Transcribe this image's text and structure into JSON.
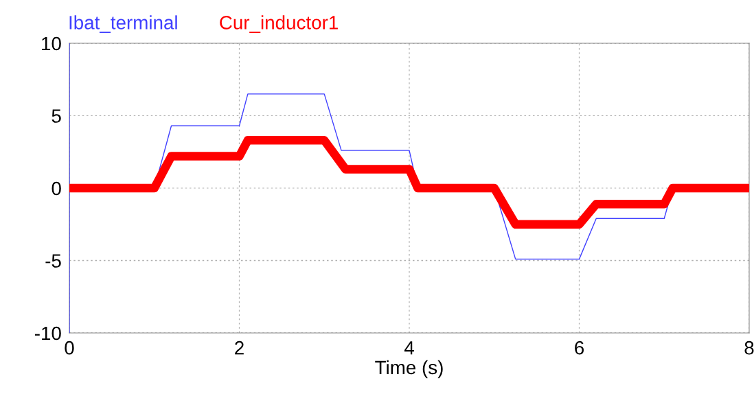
{
  "chart_data": {
    "type": "line",
    "xlabel": "Time (s)",
    "xlim": [
      0,
      8
    ],
    "xticks": [
      0,
      2,
      4,
      6,
      8
    ],
    "ylim": [
      -10,
      10
    ],
    "yticks": [
      -10,
      -5,
      0,
      5,
      10
    ],
    "grid": true,
    "legend": "top left",
    "line_style": "solid",
    "marker": "none",
    "series": [
      {
        "name": "Ibat_terminal",
        "color": "#4040ff",
        "x": [
          0,
          0,
          0,
          1,
          1.2,
          2,
          2.1,
          3,
          3.2,
          4,
          4.1,
          5,
          5.25,
          6,
          6.2,
          7,
          7.1,
          8
        ],
        "values": [
          10,
          -10,
          0,
          0,
          4.3,
          4.3,
          6.5,
          6.5,
          2.6,
          2.6,
          0,
          0,
          -4.9,
          -4.9,
          -2.1,
          -2.1,
          0,
          0
        ]
      },
      {
        "name": "Cur_inductor1",
        "color": "#ff0000",
        "x": [
          0,
          1,
          1.2,
          2,
          2.1,
          3,
          3.25,
          4,
          4.1,
          5,
          5.25,
          6,
          6.2,
          7,
          7.1,
          8
        ],
        "values": [
          0,
          0,
          2.2,
          2.2,
          3.3,
          3.3,
          1.3,
          1.3,
          0,
          0,
          -2.5,
          -2.5,
          -1.1,
          -1.1,
          0,
          0
        ]
      }
    ]
  }
}
